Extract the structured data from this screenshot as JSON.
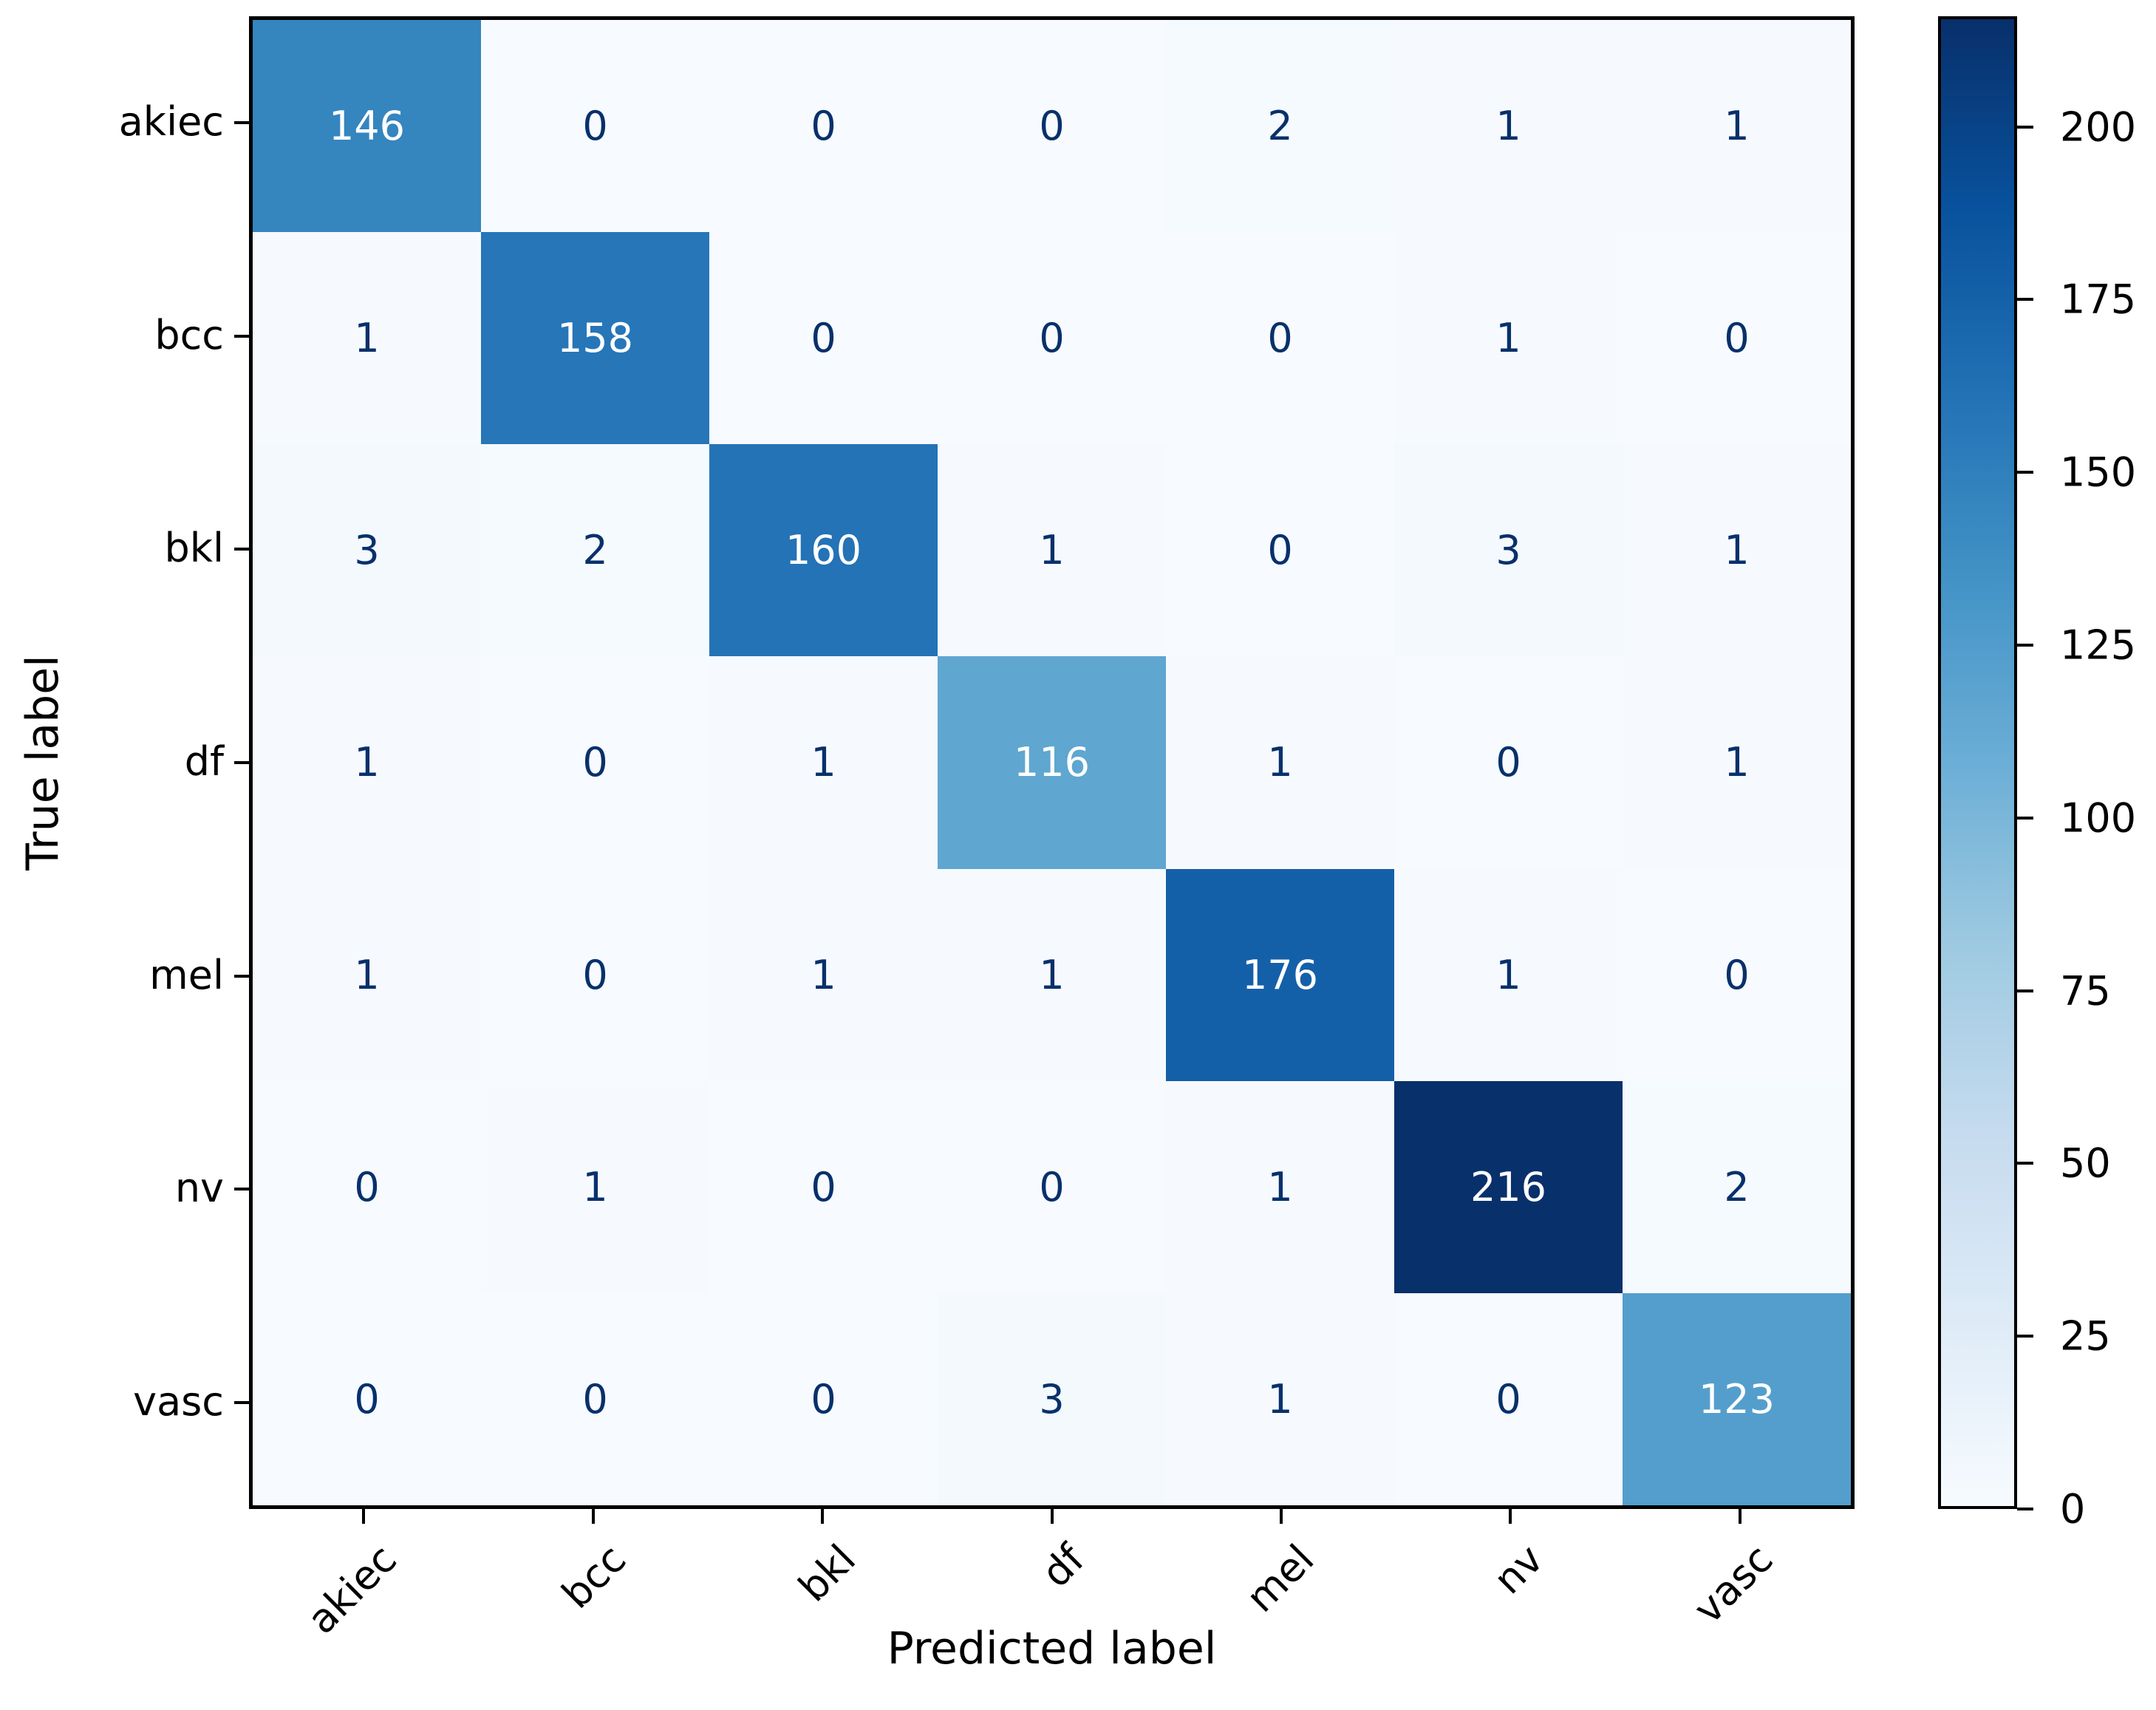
{
  "chart_data": {
    "type": "heatmap",
    "subtype": "confusion-matrix",
    "xlabel": "Predicted label",
    "ylabel": "True label",
    "categories": [
      "akiec",
      "bcc",
      "bkl",
      "df",
      "mel",
      "nv",
      "vasc"
    ],
    "matrix": [
      [
        146,
        0,
        0,
        0,
        2,
        1,
        1
      ],
      [
        1,
        158,
        0,
        0,
        0,
        1,
        0
      ],
      [
        3,
        2,
        160,
        1,
        0,
        3,
        1
      ],
      [
        1,
        0,
        1,
        116,
        1,
        0,
        1
      ],
      [
        1,
        0,
        1,
        1,
        176,
        1,
        0
      ],
      [
        0,
        1,
        0,
        0,
        1,
        216,
        2
      ],
      [
        0,
        0,
        0,
        3,
        1,
        0,
        123
      ]
    ],
    "vmin": 0,
    "vmax": 216,
    "colormap": "Blues",
    "colormap_anchors": [
      {
        "pos": 0.0,
        "color": "#f7fbff"
      },
      {
        "pos": 0.125,
        "color": "#deebf7"
      },
      {
        "pos": 0.25,
        "color": "#c6dbef"
      },
      {
        "pos": 0.375,
        "color": "#9ecae1"
      },
      {
        "pos": 0.5,
        "color": "#6baed6"
      },
      {
        "pos": 0.625,
        "color": "#4292c6"
      },
      {
        "pos": 0.75,
        "color": "#2171b5"
      },
      {
        "pos": 0.875,
        "color": "#08519c"
      },
      {
        "pos": 1.0,
        "color": "#08306b"
      }
    ],
    "colorbar_ticks": [
      0,
      25,
      50,
      75,
      100,
      125,
      150,
      175,
      200
    ],
    "colors": {
      "dark_text": "#08306b",
      "light_text": "#ffffff",
      "axis": "#000000"
    },
    "legend_position": "right-colorbar",
    "grid": false
  }
}
